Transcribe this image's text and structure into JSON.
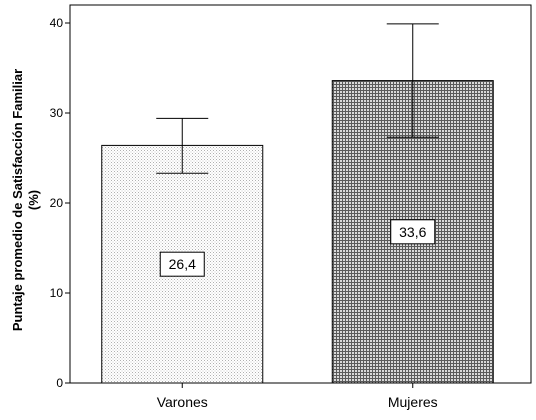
{
  "chart_data": {
    "type": "bar",
    "categories": [
      "Varones",
      "Mujeres"
    ],
    "values": [
      26.4,
      33.6
    ],
    "data_labels": [
      "26,4",
      "33,6"
    ],
    "error_bars": [
      {
        "low": 23.3,
        "high": 29.4
      },
      {
        "low": 27.3,
        "high": 39.9
      }
    ],
    "ylabel": "Puntaje promedio de Satisfacción Familiar",
    "ylabel_line2": "(%)",
    "ylim": [
      0,
      42
    ],
    "yticks": [
      0,
      10,
      20,
      30,
      40
    ],
    "patterns": [
      "light-dotted",
      "dark-crosshatch"
    ],
    "grid": false
  }
}
